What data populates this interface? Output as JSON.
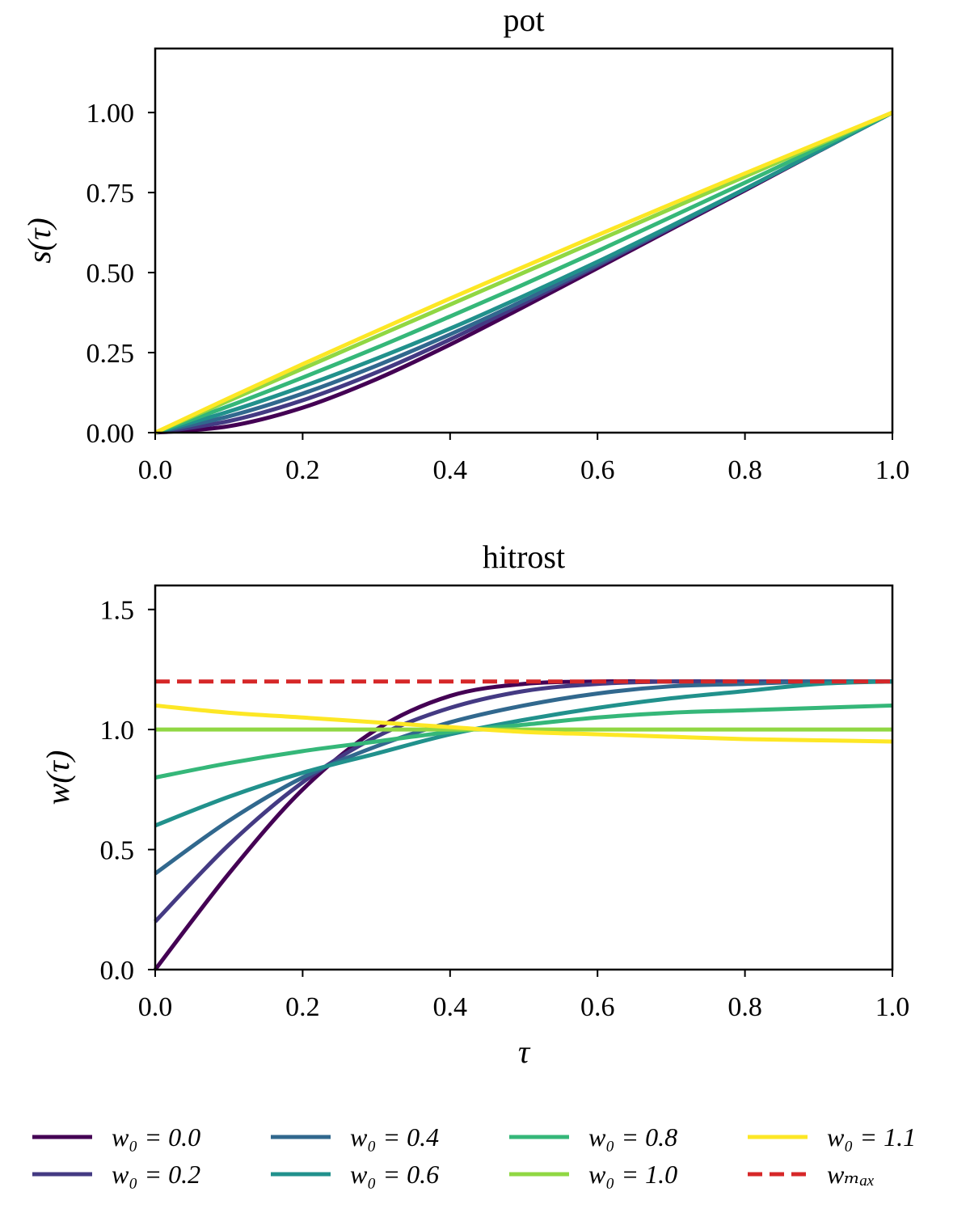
{
  "chart_data": [
    {
      "type": "line",
      "title": "pot",
      "xlabel": "",
      "ylabel": "s(τ)",
      "xlim": [
        0,
        1
      ],
      "ylim": [
        0,
        1.2
      ],
      "xticks": [
        "0.0",
        "0.2",
        "0.4",
        "0.6",
        "0.8",
        "1.0"
      ],
      "yticks": [
        "0.00",
        "0.25",
        "0.50",
        "0.75",
        "1.00"
      ],
      "x": [
        0,
        0.1,
        0.2,
        0.3,
        0.4,
        0.5,
        0.6,
        0.7,
        0.8,
        0.9,
        1.0
      ],
      "series": [
        {
          "name": "w0 = 0.0",
          "color": "#440154",
          "values": [
            0,
            0.02,
            0.078,
            0.167,
            0.275,
            0.393,
            0.514,
            0.636,
            0.757,
            0.879,
            1.0
          ]
        },
        {
          "name": "w0 = 0.2",
          "color": "#443a83",
          "values": [
            0,
            0.036,
            0.101,
            0.188,
            0.291,
            0.404,
            0.521,
            0.64,
            0.76,
            0.88,
            1.0
          ]
        },
        {
          "name": "w0 = 0.4",
          "color": "#31688e",
          "values": [
            0,
            0.051,
            0.122,
            0.209,
            0.307,
            0.413,
            0.526,
            0.642,
            0.761,
            0.88,
            1.0
          ]
        },
        {
          "name": "w0 = 0.6",
          "color": "#21918c",
          "values": [
            0,
            0.066,
            0.144,
            0.231,
            0.325,
            0.427,
            0.534,
            0.646,
            0.761,
            0.88,
            1.0
          ]
        },
        {
          "name": "w0 = 0.8",
          "color": "#35b779",
          "values": [
            0,
            0.083,
            0.172,
            0.265,
            0.363,
            0.463,
            0.567,
            0.674,
            0.781,
            0.89,
            1.0
          ]
        },
        {
          "name": "w0 = 1.0",
          "color": "#90d743",
          "values": [
            0,
            0.1,
            0.2,
            0.3,
            0.4,
            0.5,
            0.6,
            0.7,
            0.8,
            0.9,
            1.0
          ]
        },
        {
          "name": "w0 = 1.1",
          "color": "#fde725",
          "values": [
            0,
            0.108,
            0.214,
            0.317,
            0.419,
            0.518,
            0.617,
            0.714,
            0.81,
            0.905,
            1.0
          ]
        }
      ]
    },
    {
      "type": "line",
      "title": "hitrost",
      "xlabel": "τ",
      "ylabel": "w(τ)",
      "xlim": [
        0,
        1
      ],
      "ylim": [
        0,
        1.6
      ],
      "xticks": [
        "0.0",
        "0.2",
        "0.4",
        "0.6",
        "0.8",
        "1.0"
      ],
      "yticks": [
        "0.0",
        "0.5",
        "1.0",
        "1.5"
      ],
      "x": [
        0,
        0.1,
        0.2,
        0.3,
        0.4,
        0.5,
        0.6,
        0.7,
        0.8,
        0.9,
        1.0
      ],
      "series": [
        {
          "name": "w0 = 0.0",
          "color": "#440154",
          "values": [
            0,
            0.4,
            0.75,
            1.0,
            1.14,
            1.19,
            1.2,
            1.2,
            1.2,
            1.2,
            1.2
          ]
        },
        {
          "name": "w0 = 0.2",
          "color": "#443a83",
          "values": [
            0.2,
            0.52,
            0.78,
            0.97,
            1.09,
            1.16,
            1.19,
            1.2,
            1.2,
            1.2,
            1.2
          ]
        },
        {
          "name": "w0 = 0.4",
          "color": "#31688e",
          "values": [
            0.4,
            0.62,
            0.8,
            0.93,
            1.03,
            1.1,
            1.15,
            1.18,
            1.19,
            1.2,
            1.2
          ]
        },
        {
          "name": "w0 = 0.6",
          "color": "#21918c",
          "values": [
            0.6,
            0.72,
            0.82,
            0.9,
            0.98,
            1.04,
            1.09,
            1.13,
            1.16,
            1.19,
            1.2
          ]
        },
        {
          "name": "w0 = 0.8",
          "color": "#35b779",
          "values": [
            0.8,
            0.86,
            0.91,
            0.95,
            0.99,
            1.02,
            1.05,
            1.07,
            1.08,
            1.09,
            1.1
          ]
        },
        {
          "name": "w0 = 1.0",
          "color": "#90d743",
          "values": [
            1,
            1,
            1,
            1,
            1,
            1,
            1,
            1,
            1,
            1,
            1
          ]
        },
        {
          "name": "w0 = 1.1",
          "color": "#fde725",
          "values": [
            1.1,
            1.07,
            1.05,
            1.03,
            1.01,
            0.99,
            0.98,
            0.97,
            0.96,
            0.955,
            0.95
          ]
        },
        {
          "name": "wmax",
          "color": "#d62728",
          "dashed": true,
          "values": [
            1.2,
            1.2,
            1.2,
            1.2,
            1.2,
            1.2,
            1.2,
            1.2,
            1.2,
            1.2,
            1.2
          ]
        }
      ]
    }
  ],
  "legend": {
    "placement": "bottom",
    "entries": [
      {
        "label": "w₀ = 0.0",
        "color": "#440154"
      },
      {
        "label": "w₀ = 0.2",
        "color": "#443a83"
      },
      {
        "label": "w₀ = 0.4",
        "color": "#31688e"
      },
      {
        "label": "w₀ = 0.6",
        "color": "#21918c"
      },
      {
        "label": "w₀ = 0.8",
        "color": "#35b779"
      },
      {
        "label": "w₀ = 1.0",
        "color": "#90d743"
      },
      {
        "label": "w₀ = 1.1",
        "color": "#fde725"
      },
      {
        "label": "wₘₐₓ",
        "color": "#d62728",
        "dashed": true
      }
    ]
  }
}
